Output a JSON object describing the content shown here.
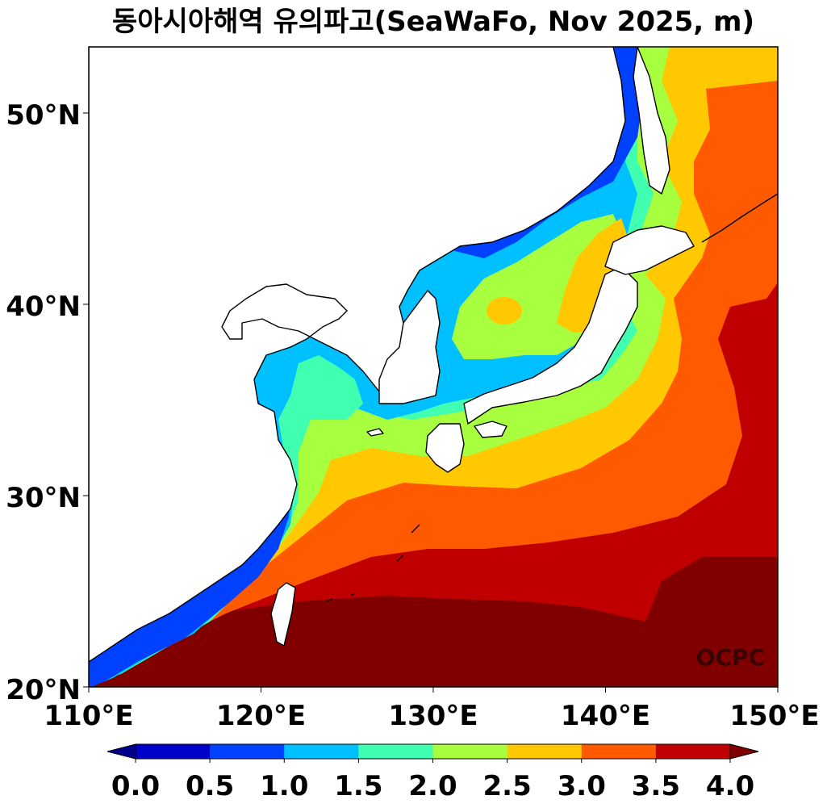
{
  "title": "동아시아해역 유의파고(SeaWaFo, Nov 2025, m)",
  "watermark": "OCPC",
  "map": {
    "lon_range": [
      110,
      150
    ],
    "lat_range": [
      20,
      53.5
    ],
    "x_tick_labels": [
      "110°E",
      "120°E",
      "130°E",
      "140°E",
      "150°E"
    ],
    "y_tick_labels": [
      "20°N",
      "30°N",
      "40°N",
      "50°N"
    ],
    "land_color": "#ffffff",
    "coastline_color": "#000000"
  },
  "colorbar": {
    "levels": [
      0.0,
      0.5,
      1.0,
      1.5,
      2.0,
      2.5,
      3.0,
      3.5,
      4.0
    ],
    "tick_labels": [
      "0.0",
      "0.5",
      "1.0",
      "1.5",
      "2.0",
      "2.5",
      "3.0",
      "3.5",
      "4.0"
    ],
    "colors": [
      "#0000c8",
      "#0040ff",
      "#00c0ff",
      "#40ffb0",
      "#a8ff40",
      "#ffc800",
      "#ff5a00",
      "#c00000"
    ],
    "under_color": "#00008b",
    "over_color": "#800000",
    "extend": "both"
  }
}
